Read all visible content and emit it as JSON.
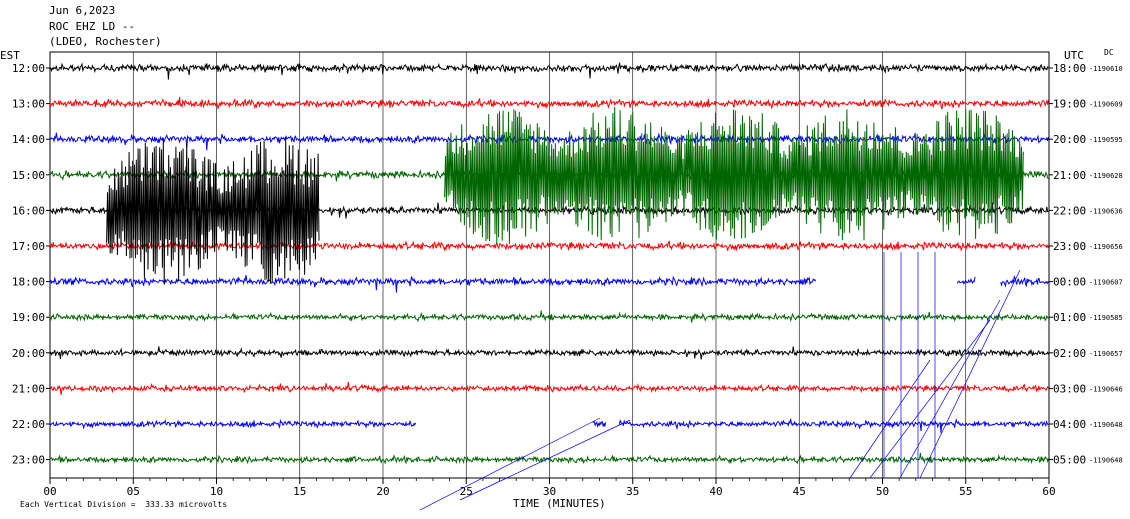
{
  "header": {
    "date": "Jun 6,2023",
    "station": "ROC EHZ LD --",
    "network": "(LDEO, Rochester)"
  },
  "labels": {
    "left_zone": "EST",
    "right_zone": "UTC",
    "dc": "DC",
    "xlabel": "TIME (MINUTES)",
    "scale_note": "Each Vertical Division =  333.33 microvolts"
  },
  "colors": {
    "black": "#000000",
    "red": "#ff0000",
    "blue": "#0000ff",
    "green": "#006600"
  },
  "chart_data": {
    "type": "line",
    "title": "ROC EHZ LD --",
    "xlabel": "TIME (MINUTES)",
    "xlim": [
      0,
      60
    ],
    "x_ticks": [
      "00",
      "05",
      "10",
      "15",
      "20",
      "25",
      "30",
      "35",
      "40",
      "45",
      "50",
      "55",
      "60"
    ],
    "grid": true,
    "rows": [
      {
        "left": "12:00",
        "right": "18:00",
        "dc": "-1190610",
        "color": "black",
        "amp": 5,
        "gaps": []
      },
      {
        "left": "13:00",
        "right": "19:00",
        "dc": "-1190609",
        "color": "red",
        "amp": 5,
        "gaps": []
      },
      {
        "left": "14:00",
        "right": "20:00",
        "dc": "-1190595",
        "color": "blue",
        "amp": 5,
        "gaps": []
      },
      {
        "left": "15:00",
        "right": "21:00",
        "dc": "-1190628",
        "color": "green",
        "amp": 5,
        "gaps": []
      },
      {
        "left": "16:00",
        "right": "22:00",
        "dc": "-1190636",
        "color": "black",
        "amp": 5,
        "gaps": []
      },
      {
        "left": "17:00",
        "right": "23:00",
        "dc": "-1190656",
        "color": "red",
        "amp": 5,
        "gaps": []
      },
      {
        "left": "18:00",
        "right": "00:00",
        "dc": "-1190607",
        "color": "blue",
        "amp": 5,
        "gaps": [
          [
            46.0,
            54.5
          ],
          [
            55.6,
            57.1
          ]
        ]
      },
      {
        "left": "19:00",
        "right": "01:00",
        "dc": "-1190585",
        "color": "green",
        "amp": 4,
        "gaps": []
      },
      {
        "left": "20:00",
        "right": "02:00",
        "dc": "-1190657",
        "color": "black",
        "amp": 4,
        "gaps": []
      },
      {
        "left": "21:00",
        "right": "03:00",
        "dc": "-1190646",
        "color": "red",
        "amp": 4,
        "gaps": []
      },
      {
        "left": "22:00",
        "right": "04:00",
        "dc": "-1190648",
        "color": "blue",
        "amp": 4,
        "gaps": [
          [
            22.0,
            32.6
          ],
          [
            33.4,
            34.2
          ]
        ]
      },
      {
        "left": "23:00",
        "right": "05:00",
        "dc": "-1190648",
        "color": "green",
        "amp": 4,
        "gaps": []
      }
    ],
    "events": [
      {
        "row": 4,
        "color": "black",
        "x_from": 3.4,
        "x_to": 16.2,
        "amp": 75
      },
      {
        "row": 3,
        "color": "green",
        "x_from": 23.7,
        "x_to": 58.5,
        "amp": 70
      }
    ]
  }
}
